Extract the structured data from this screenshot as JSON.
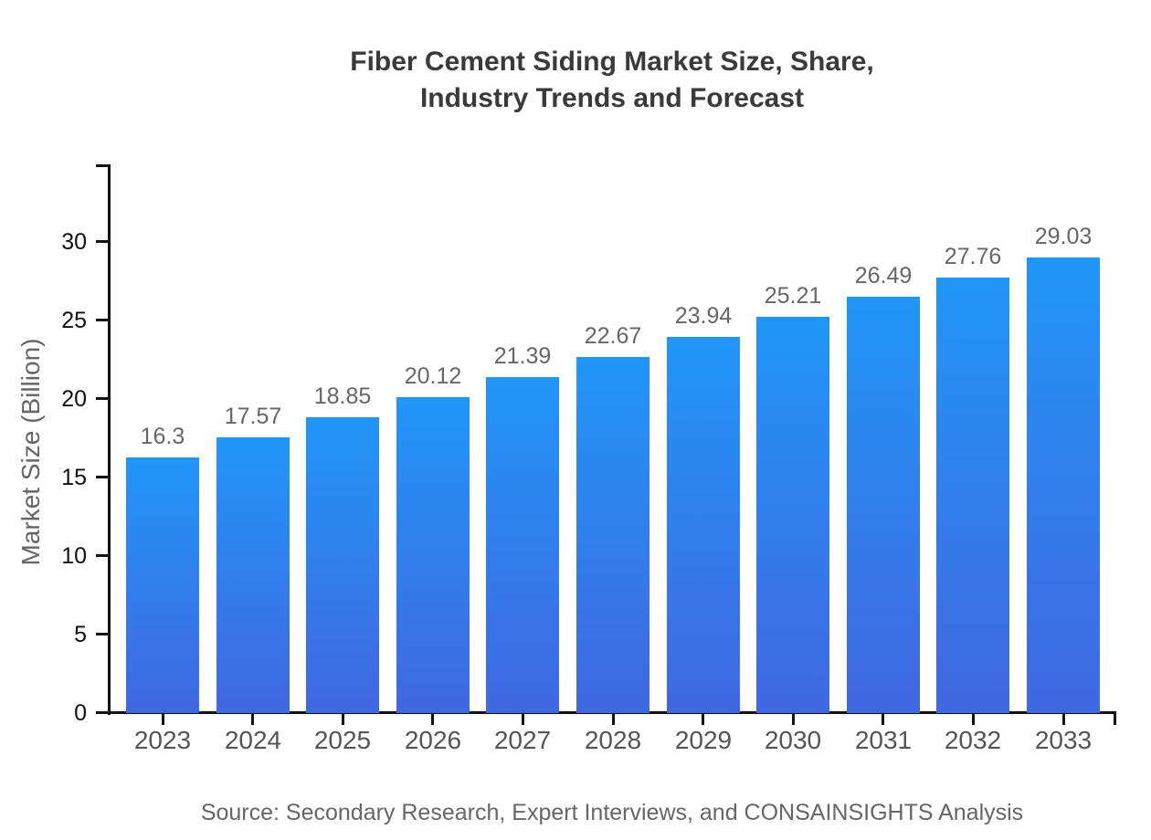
{
  "title": {
    "line1": "Fiber Cement Siding Market Size, Share,",
    "line2": "Industry Trends and Forecast"
  },
  "source": "Source: Secondary Research, Expert Interviews, and CONSAINSIGHTS Analysis",
  "chart_data": {
    "type": "bar",
    "title": "Fiber Cement Siding Market Size, Share, Industry Trends and Forecast",
    "categories": [
      "2023",
      "2024",
      "2025",
      "2026",
      "2027",
      "2028",
      "2029",
      "2030",
      "2031",
      "2032",
      "2033"
    ],
    "values": [
      16.3,
      17.57,
      18.85,
      20.12,
      21.39,
      22.67,
      23.94,
      25.21,
      26.49,
      27.76,
      29.03
    ],
    "value_labels_shown": true,
    "xlabel": "",
    "ylabel": "Market Size (Billion)",
    "ylim": [
      0,
      35
    ],
    "yticks": [
      0,
      5,
      10,
      15,
      20,
      25,
      30
    ],
    "grid": false,
    "legend": false
  },
  "colors": {
    "bar_gradient_top": "#2196F8",
    "bar_gradient_bottom": "#4167E0",
    "axis": "#111111",
    "y_tick_label": "#111111",
    "category_label": "#555555",
    "value_label": "#666666",
    "title": "#3a3a3a",
    "source": "#666666",
    "background": "#ffffff"
  }
}
